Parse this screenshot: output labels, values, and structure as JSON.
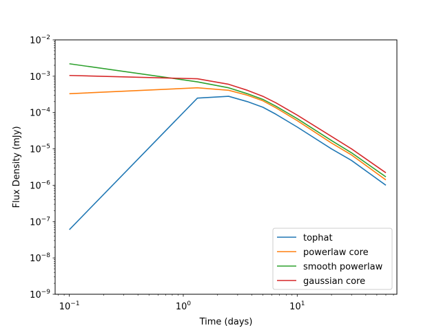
{
  "chart_data": {
    "type": "line",
    "title": "",
    "xlabel": "Time (days)",
    "ylabel": "Flux Density (mJy)",
    "xscale": "log",
    "yscale": "log",
    "xlim": [
      0.075,
      75
    ],
    "ylim": [
      1e-09,
      0.01
    ],
    "grid": false,
    "legend_position": "lower-right",
    "x_ticks": [
      {
        "value": 0.1,
        "base": "10",
        "exp": "−1"
      },
      {
        "value": 1,
        "base": "10",
        "exp": "0"
      },
      {
        "value": 10,
        "base": "10",
        "exp": "1"
      }
    ],
    "y_ticks": [
      {
        "value": 1e-09,
        "base": "10",
        "exp": "−9"
      },
      {
        "value": 1e-08,
        "base": "10",
        "exp": "−8"
      },
      {
        "value": 1e-07,
        "base": "10",
        "exp": "−7"
      },
      {
        "value": 1e-06,
        "base": "10",
        "exp": "−6"
      },
      {
        "value": 1e-05,
        "base": "10",
        "exp": "−5"
      },
      {
        "value": 0.0001,
        "base": "10",
        "exp": "−4"
      },
      {
        "value": 0.001,
        "base": "10",
        "exp": "−3"
      },
      {
        "value": 0.01,
        "base": "10",
        "exp": "−2"
      }
    ],
    "x": [
      0.1,
      1.33,
      2.5,
      3.65,
      5.0,
      6.5,
      10.0,
      20.0,
      30.0,
      60.0
    ],
    "series": [
      {
        "name": "tophat",
        "color": "#1f77b4",
        "values": [
          6e-08,
          0.00025,
          0.00028,
          0.0002,
          0.00014,
          9e-05,
          4e-05,
          1e-05,
          4.8e-06,
          1e-06
        ]
      },
      {
        "name": "powerlaw core",
        "color": "#ff7f0e",
        "values": [
          0.00033,
          0.00048,
          0.00041,
          0.0003,
          0.00021,
          0.000135,
          6e-05,
          1.45e-05,
          6.8e-06,
          1.4e-06
        ]
      },
      {
        "name": "smooth powerlaw",
        "color": "#2ca02c",
        "values": [
          0.0022,
          0.0007,
          0.00048,
          0.00033,
          0.00023,
          0.00015,
          6.8e-05,
          1.7e-05,
          7.8e-06,
          1.7e-06
        ]
      },
      {
        "name": "gaussian core",
        "color": "#d62728",
        "values": [
          0.00105,
          0.00085,
          0.0006,
          0.00041,
          0.00028,
          0.000185,
          8.5e-05,
          2.2e-05,
          1e-05,
          2.2e-06
        ]
      }
    ]
  }
}
